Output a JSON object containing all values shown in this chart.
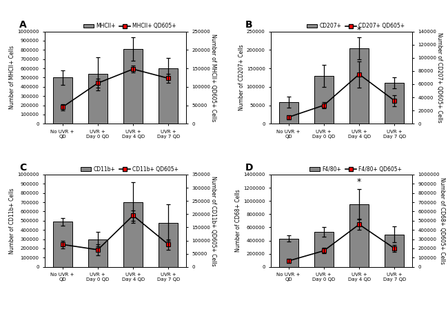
{
  "panels": [
    {
      "label": "A",
      "left_ylabel": "Number of MHCII+ Cells",
      "right_ylabel": "Number of MHCII+ QD605+ Cells",
      "bar_label": "MHCII+",
      "line_label": "MHCII+ QD605+",
      "bar_values": [
        500000,
        540000,
        810000,
        600000
      ],
      "bar_errors": [
        80000,
        180000,
        130000,
        110000
      ],
      "line_values": [
        45000,
        110000,
        148000,
        123000
      ],
      "line_errors": [
        8000,
        12000,
        10000,
        12000
      ],
      "left_ylim": [
        0,
        1000000
      ],
      "left_yticks": [
        0,
        100000,
        200000,
        300000,
        400000,
        500000,
        600000,
        700000,
        800000,
        900000,
        1000000
      ],
      "right_ylim": [
        0,
        250000
      ],
      "right_yticks": [
        0,
        50000,
        100000,
        150000,
        200000,
        250000
      ],
      "star": false,
      "star_idx": null
    },
    {
      "label": "B",
      "left_ylabel": "Number of CD207+ Cells",
      "right_ylabel": "Number of CD207+ QD605+ Cells",
      "bar_label": "CD207+",
      "line_label": "CD207+ QD605+",
      "bar_values": [
        58000,
        130000,
        205000,
        110000
      ],
      "bar_errors": [
        15000,
        30000,
        30000,
        15000
      ],
      "line_values": [
        10000,
        28000,
        75000,
        35000
      ],
      "line_errors": [
        3000,
        5000,
        20000,
        8000
      ],
      "left_ylim": [
        0,
        250000
      ],
      "left_yticks": [
        0,
        50000,
        100000,
        150000,
        200000,
        250000
      ],
      "right_ylim": [
        0,
        140000
      ],
      "right_yticks": [
        0,
        20000,
        40000,
        60000,
        80000,
        100000,
        120000,
        140000
      ],
      "star": true,
      "star_idx": 2
    },
    {
      "label": "C",
      "left_ylabel": "Number of CD11b+ Cells",
      "right_ylabel": "Number of CD11b+ QD605+ Cells",
      "bar_label": "CD11b+",
      "line_label": "CD11b+ QD605+",
      "bar_values": [
        490000,
        300000,
        700000,
        480000
      ],
      "bar_errors": [
        40000,
        80000,
        220000,
        200000
      ],
      "line_values": [
        85000,
        65000,
        195000,
        85000
      ],
      "line_errors": [
        15000,
        20000,
        20000,
        20000
      ],
      "left_ylim": [
        0,
        1000000
      ],
      "left_yticks": [
        0,
        100000,
        200000,
        300000,
        400000,
        500000,
        600000,
        700000,
        800000,
        900000,
        1000000
      ],
      "right_ylim": [
        0,
        350000
      ],
      "right_yticks": [
        0,
        50000,
        100000,
        150000,
        200000,
        250000,
        300000,
        350000
      ],
      "star": false,
      "star_idx": null
    },
    {
      "label": "D",
      "left_ylabel": "Number of CD68+ Cells",
      "right_ylabel": "Number of CD68+ QD605+ Cells",
      "bar_label": "F4/80+",
      "line_label": "F4/80+ QD605+",
      "bar_values": [
        430000,
        530000,
        950000,
        490000
      ],
      "bar_errors": [
        50000,
        70000,
        230000,
        120000
      ],
      "line_values": [
        65000,
        175000,
        460000,
        200000
      ],
      "line_errors": [
        20000,
        30000,
        60000,
        40000
      ],
      "left_ylim": [
        0,
        1400000
      ],
      "left_yticks": [
        0,
        200000,
        400000,
        600000,
        800000,
        1000000,
        1200000,
        1400000
      ],
      "right_ylim": [
        0,
        1000000
      ],
      "right_yticks": [
        0,
        100000,
        200000,
        300000,
        400000,
        500000,
        600000,
        700000,
        800000,
        900000,
        1000000
      ],
      "star": true,
      "star_idx": 2
    }
  ],
  "xticklabels": [
    "No UVR +\nQD",
    "UVR +\nDay 0 QD",
    "UVR +\nDay 4 QD",
    "UVR +\nDay 7 QD"
  ],
  "bar_color": "#888888",
  "bar_edge_color": "#000000",
  "line_color": "#000000",
  "marker_color": "#ff0000",
  "marker_edge_color": "#000000",
  "bar_width": 0.55,
  "background_color": "#ffffff"
}
